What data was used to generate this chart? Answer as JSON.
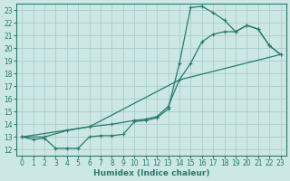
{
  "xlabel": "Humidex (Indice chaleur)",
  "bg_color": "#cce8e4",
  "grid_color": "#aacccc",
  "line_color": "#2a7a6a",
  "xlim": [
    -0.5,
    23.5
  ],
  "ylim": [
    11.5,
    23.5
  ],
  "xticks": [
    0,
    1,
    2,
    3,
    4,
    5,
    6,
    7,
    8,
    9,
    10,
    11,
    12,
    13,
    14,
    15,
    16,
    17,
    18,
    19,
    20,
    21,
    22,
    23
  ],
  "yticks": [
    12,
    13,
    14,
    15,
    16,
    17,
    18,
    19,
    20,
    21,
    22,
    23
  ],
  "line1_x": [
    0,
    1,
    2,
    3,
    4,
    5,
    6,
    7,
    8,
    9,
    10,
    11,
    12,
    13,
    14,
    15,
    16,
    17,
    18,
    19,
    20,
    21,
    22,
    23
  ],
  "line1_y": [
    13.0,
    12.8,
    12.9,
    12.1,
    12.1,
    12.1,
    13.0,
    13.1,
    13.1,
    13.2,
    14.2,
    14.3,
    14.5,
    15.2,
    18.8,
    23.2,
    23.3,
    22.8,
    22.2,
    21.3,
    21.8,
    21.5,
    20.2,
    19.5
  ],
  "line2_x": [
    0,
    2,
    4,
    6,
    8,
    10,
    11,
    12,
    13,
    14,
    15,
    16,
    17,
    18,
    19,
    20,
    21,
    22,
    23
  ],
  "line2_y": [
    13.0,
    13.0,
    13.5,
    13.8,
    14.0,
    14.3,
    14.4,
    14.6,
    15.4,
    17.5,
    18.8,
    20.5,
    21.1,
    21.3,
    21.3,
    21.8,
    21.5,
    20.2,
    19.5
  ],
  "line3_x": [
    0,
    6,
    14,
    23
  ],
  "line3_y": [
    13.0,
    13.8,
    17.5,
    19.5
  ]
}
